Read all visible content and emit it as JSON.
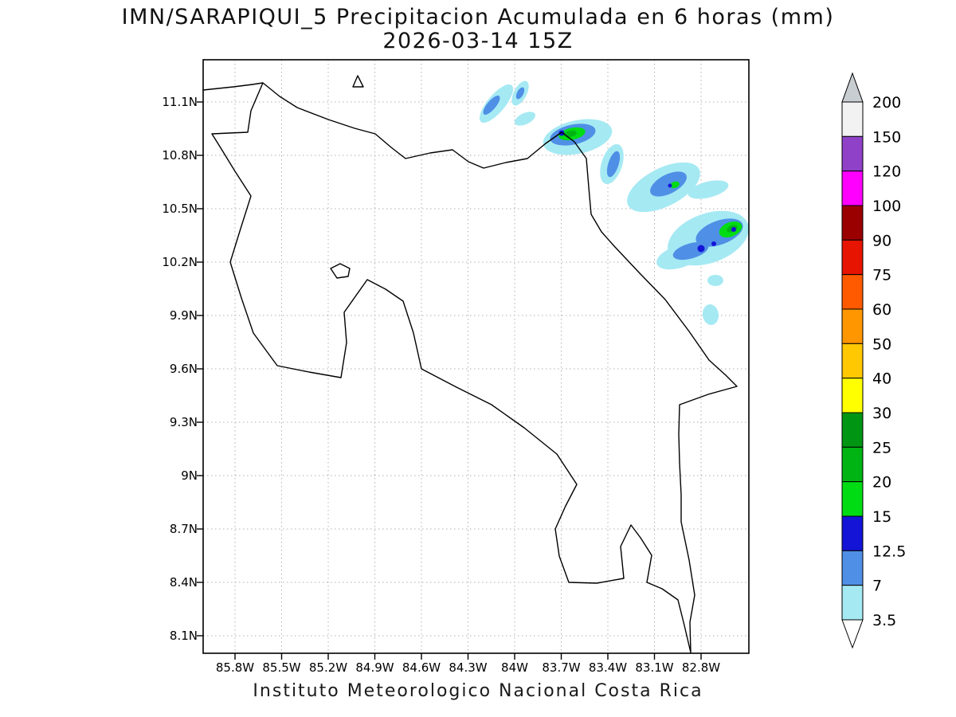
{
  "title": {
    "line1": "IMN/SARAPIQUI_5 Precipitacion Acumulada en 6 horas (mm)",
    "line2": "2026-03-14 15Z"
  },
  "footer": "Instituto Meteorologico Nacional Costa Rica",
  "axes": {
    "y_tick_labels": [
      "11.1N",
      "10.8N",
      "10.5N",
      "10.2N",
      "9.9N",
      "9.6N",
      "9.3N",
      "9N",
      "8.7N",
      "8.4N",
      "8.1N"
    ],
    "x_tick_labels": [
      "85.8W",
      "85.5W",
      "85.2W",
      "84.9W",
      "84.6W",
      "84.3W",
      "84W",
      "83.7W",
      "83.4W",
      "83.1W",
      "82.8W"
    ]
  },
  "colorbar": {
    "labels_top_to_bottom": [
      "200",
      "150",
      "120",
      "100",
      "90",
      "75",
      "60",
      "50",
      "40",
      "30",
      "25",
      "20",
      "15",
      "12.5",
      "7",
      "3.5"
    ],
    "segment_colors_top_to_bottom": [
      "#f2f2f2",
      "#8f42c8",
      "#ff00ff",
      "#9b0000",
      "#e61400",
      "#ff5a00",
      "#ff9600",
      "#ffc800",
      "#ffff00",
      "#009614",
      "#00b414",
      "#00dc14",
      "#1414d7",
      "#4f8fe6",
      "#a5e9f3"
    ],
    "above_max_color": "#c8cdd2",
    "below_min_color": "#ffffff"
  },
  "chart_data": {
    "type": "heatmap",
    "title": "IMN/SARAPIQUI_5 Precipitacion Acumulada en 6 horas (mm)",
    "valid_time": "2026-03-14 15Z",
    "units": "mm",
    "region": "Costa Rica",
    "x_ticks": [
      "85.8W",
      "85.5W",
      "85.2W",
      "84.9W",
      "84.6W",
      "84.3W",
      "84W",
      "83.7W",
      "83.4W",
      "83.1W",
      "82.8W"
    ],
    "y_ticks": [
      "11.1N",
      "10.8N",
      "10.5N",
      "10.2N",
      "9.9N",
      "9.6N",
      "9.3N",
      "9N",
      "8.7N",
      "8.4N",
      "8.1N"
    ],
    "contour_levels": [
      3.5,
      7,
      12.5,
      15,
      20,
      25,
      30,
      40,
      50,
      60,
      75,
      90,
      100,
      120,
      150,
      200
    ],
    "legend_position": "right",
    "grid": true,
    "precip_areas": [
      {
        "approx_lat": "11.0-11.15N",
        "approx_lon": "84.0-84.3W",
        "max_intensity_mm": "7-12.5"
      },
      {
        "approx_lat": "10.8-10.95N",
        "approx_lon": "83.4-83.8W",
        "max_intensity_mm": "20-30"
      },
      {
        "approx_lat": "10.55-10.75N",
        "approx_lon": "83.0-83.4W",
        "max_intensity_mm": "12.5-15"
      },
      {
        "approx_lat": "10.5-10.7N",
        "approx_lon": "82.8-83.1W",
        "max_intensity_mm": "20-25"
      },
      {
        "approx_lat": "10.2-10.45N",
        "approx_lon": "82.6-83.0W",
        "max_intensity_mm": "15-25"
      },
      {
        "approx_lat": "9.85-10.0N",
        "approx_lon": "82.7-82.8W",
        "max_intensity_mm": "3.5-7"
      }
    ]
  }
}
